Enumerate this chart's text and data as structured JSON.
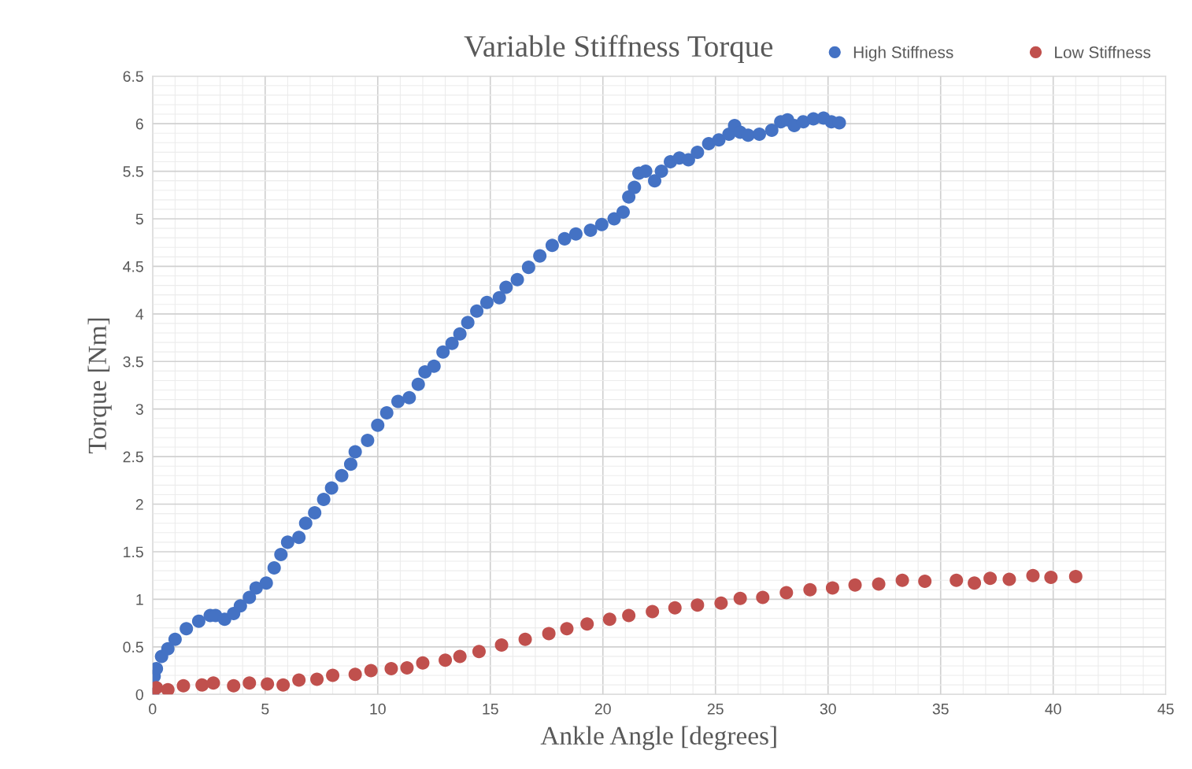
{
  "chart_data": {
    "type": "scatter",
    "title": "Variable Stiffness Torque",
    "xlabel": "Ankle Angle [degrees]",
    "ylabel": "Torque [Nm]",
    "xlim": [
      0,
      45
    ],
    "xticks": [
      0,
      5,
      10,
      15,
      20,
      25,
      30,
      35,
      40,
      45
    ],
    "ylim": [
      0,
      6.5
    ],
    "yticks": [
      0,
      0.5,
      1,
      1.5,
      2,
      2.5,
      3,
      3.5,
      4,
      4.5,
      5,
      5.5,
      6,
      6.5
    ],
    "grid": true,
    "legend": "top right",
    "marker": "circle",
    "series": [
      {
        "name": "High Stiffness",
        "color": "#4472c4",
        "x": [
          0,
          0.07,
          0.17,
          0.4,
          0.68,
          1.0,
          1.5,
          2.05,
          2.56,
          2.8,
          3.2,
          3.6,
          3.9,
          4.3,
          4.6,
          5.05,
          5.4,
          5.7,
          6.0,
          6.5,
          6.8,
          7.2,
          7.6,
          7.95,
          8.4,
          8.8,
          9.0,
          9.55,
          10.0,
          10.4,
          10.9,
          11.4,
          11.8,
          12.1,
          12.5,
          12.9,
          13.3,
          13.65,
          14.0,
          14.4,
          14.85,
          15.4,
          15.7,
          16.2,
          16.7,
          17.2,
          17.75,
          18.3,
          18.8,
          19.45,
          19.95,
          20.5,
          20.9,
          21.15,
          21.4,
          21.6,
          21.9,
          22.3,
          22.6,
          23.0,
          23.4,
          23.8,
          24.2,
          24.7,
          25.15,
          25.6,
          25.85,
          26.1,
          26.45,
          26.95,
          27.5,
          27.9,
          28.2,
          28.5,
          28.9,
          29.35,
          29.8,
          30.15,
          30.5
        ],
        "values": [
          0,
          0.19,
          0.27,
          0.4,
          0.48,
          0.58,
          0.69,
          0.77,
          0.83,
          0.83,
          0.79,
          0.85,
          0.93,
          1.02,
          1.12,
          1.17,
          1.33,
          1.47,
          1.6,
          1.65,
          1.8,
          1.91,
          2.05,
          2.17,
          2.3,
          2.42,
          2.55,
          2.67,
          2.83,
          2.96,
          3.08,
          3.12,
          3.26,
          3.39,
          3.45,
          3.6,
          3.69,
          3.79,
          3.91,
          4.03,
          4.12,
          4.17,
          4.28,
          4.36,
          4.49,
          4.61,
          4.72,
          4.79,
          4.84,
          4.88,
          4.94,
          5.0,
          5.07,
          5.23,
          5.33,
          5.48,
          5.5,
          5.4,
          5.5,
          5.6,
          5.64,
          5.62,
          5.7,
          5.79,
          5.83,
          5.89,
          5.98,
          5.91,
          5.88,
          5.89,
          5.93,
          6.02,
          6.04,
          5.98,
          6.02,
          6.05,
          6.06,
          6.02,
          6.01
        ]
      },
      {
        "name": "Low Stiffness",
        "color": "#c0504d",
        "x": [
          0,
          0.17,
          0.68,
          1.37,
          2.2,
          2.7,
          3.6,
          4.3,
          5.1,
          5.8,
          6.5,
          7.3,
          8.0,
          9.0,
          9.7,
          10.6,
          11.3,
          12.0,
          13.0,
          13.65,
          14.5,
          15.5,
          16.55,
          17.6,
          18.4,
          19.3,
          20.3,
          21.15,
          22.2,
          23.2,
          24.2,
          25.25,
          26.1,
          27.1,
          28.15,
          29.2,
          30.2,
          31.2,
          32.25,
          33.3,
          34.3,
          35.7,
          36.5,
          37.2,
          38.05,
          39.1,
          39.9,
          41.0
        ],
        "values": [
          0,
          0.07,
          0.05,
          0.09,
          0.1,
          0.12,
          0.09,
          0.12,
          0.11,
          0.1,
          0.15,
          0.16,
          0.2,
          0.21,
          0.25,
          0.27,
          0.28,
          0.33,
          0.36,
          0.4,
          0.45,
          0.52,
          0.58,
          0.64,
          0.69,
          0.74,
          0.79,
          0.83,
          0.87,
          0.91,
          0.94,
          0.96,
          1.01,
          1.02,
          1.07,
          1.1,
          1.12,
          1.15,
          1.16,
          1.2,
          1.19,
          1.2,
          1.17,
          1.22,
          1.21,
          1.25,
          1.23,
          1.24
        ]
      }
    ]
  }
}
